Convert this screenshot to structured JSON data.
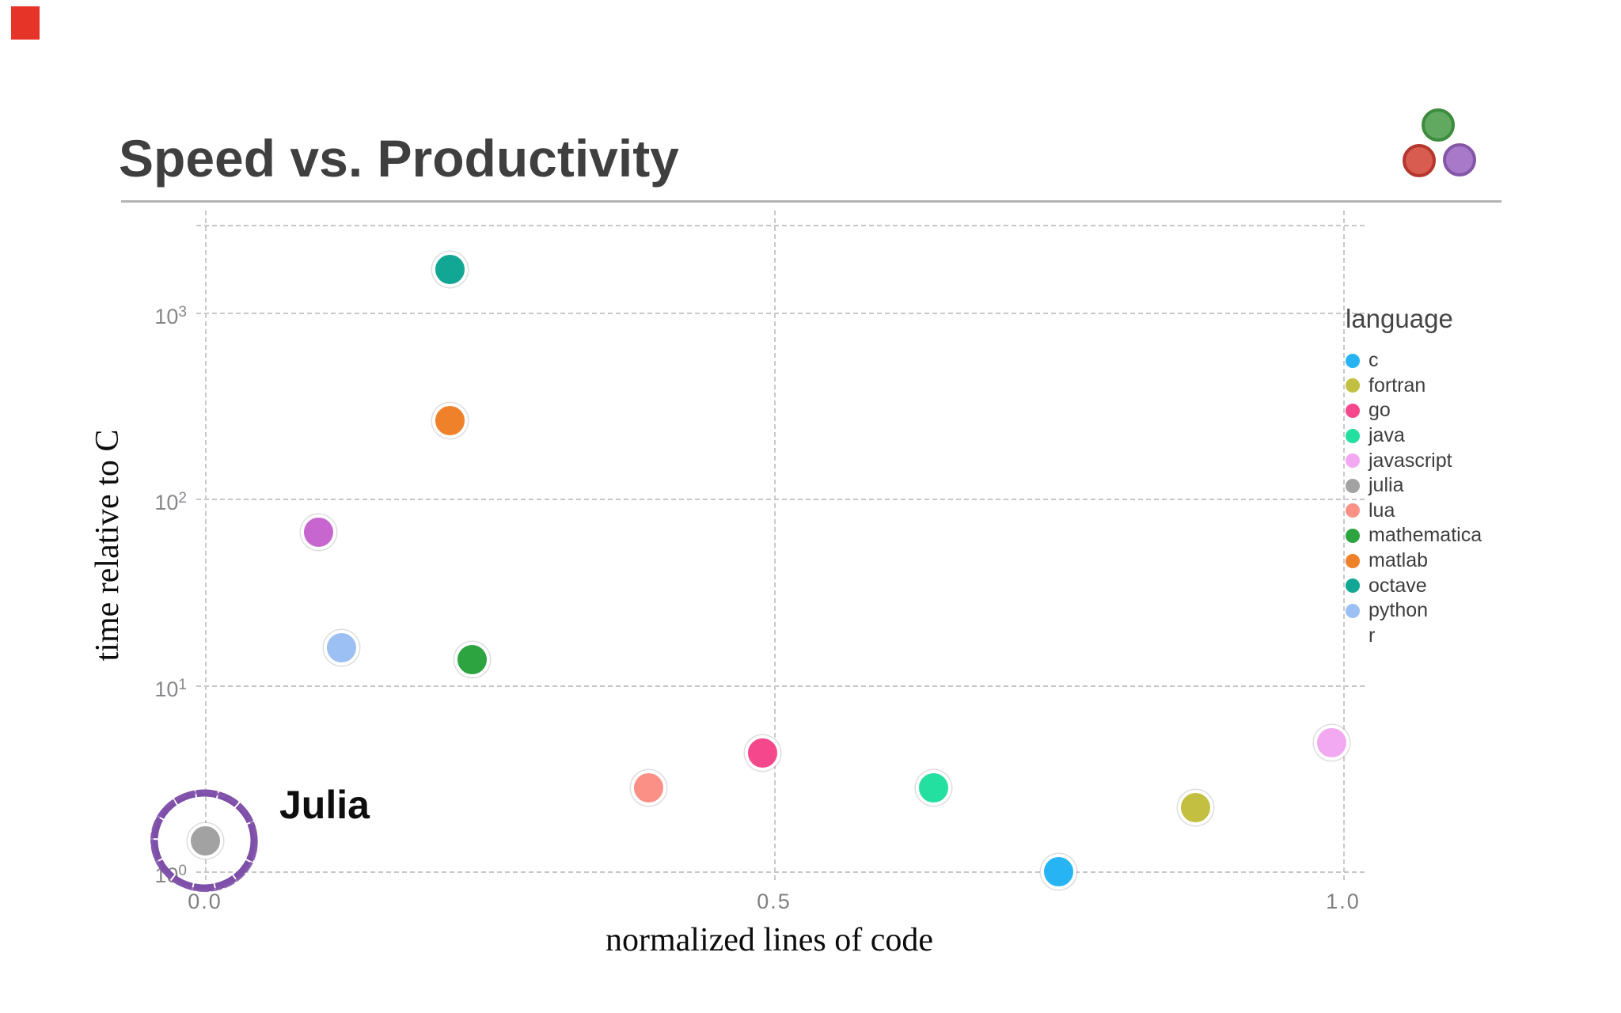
{
  "slide": {
    "title": "Speed vs. Productivity",
    "record_marker_color": "#e63429",
    "logo": {
      "description": "julia-three-dots-logo",
      "green": "#61a861",
      "green_border": "#3d8b3d",
      "red": "#d85c50",
      "red_border": "#b4362c",
      "purple": "#a979c9",
      "purple_border": "#8356a8"
    }
  },
  "annotation": {
    "label": "Julia",
    "circle_color": "#7d4fa8",
    "circled_language": "julia"
  },
  "chart_data": {
    "type": "scatter",
    "title": "",
    "legend_title": "language",
    "legend_position": "right",
    "grid": true,
    "x_axis": {
      "label": "normalized lines of code",
      "scale": "linear",
      "xlim": [
        -0.01,
        1.02
      ],
      "ticks": [
        {
          "value": 0.0,
          "label": "0.0"
        },
        {
          "value": 0.5,
          "label": "0.5"
        },
        {
          "value": 1.0,
          "label": "1.0"
        }
      ]
    },
    "y_axis": {
      "label": "time relative to C",
      "scale": "log",
      "ylim": [
        0.9,
        3400
      ],
      "ticks": [
        {
          "value": 1,
          "base": "10",
          "exponent": "0"
        },
        {
          "value": 10,
          "base": "10",
          "exponent": "1"
        },
        {
          "value": 100,
          "base": "10",
          "exponent": "2"
        },
        {
          "value": 1000,
          "base": "10",
          "exponent": "3"
        }
      ]
    },
    "points": [
      {
        "language": "c",
        "normalized_loc": 0.75,
        "time_relative_to_c": 1.0,
        "color": "#27b4f5",
        "legend_swatch_visible": true
      },
      {
        "language": "fortran",
        "normalized_loc": 0.87,
        "time_relative_to_c": 2.2,
        "color": "#c3bf40",
        "legend_swatch_visible": true
      },
      {
        "language": "go",
        "normalized_loc": 0.49,
        "time_relative_to_c": 4.3,
        "color": "#f5478c",
        "legend_swatch_visible": true
      },
      {
        "language": "java",
        "normalized_loc": 0.64,
        "time_relative_to_c": 2.8,
        "color": "#23dfa0",
        "legend_swatch_visible": true
      },
      {
        "language": "javascript",
        "normalized_loc": 0.99,
        "time_relative_to_c": 4.9,
        "color": "#f2a9f2",
        "legend_swatch_visible": true
      },
      {
        "language": "julia",
        "normalized_loc": 0.0,
        "time_relative_to_c": 1.45,
        "color": "#a2a2a2",
        "legend_swatch_visible": true
      },
      {
        "language": "lua",
        "normalized_loc": 0.39,
        "time_relative_to_c": 2.8,
        "color": "#fb9186",
        "legend_swatch_visible": true
      },
      {
        "language": "mathematica",
        "normalized_loc": 0.235,
        "time_relative_to_c": 13.7,
        "color": "#2ea440",
        "legend_swatch_visible": true
      },
      {
        "language": "matlab",
        "normalized_loc": 0.215,
        "time_relative_to_c": 263,
        "color": "#ef812b",
        "legend_swatch_visible": true
      },
      {
        "language": "octave",
        "normalized_loc": 0.215,
        "time_relative_to_c": 1700,
        "color": "#12a795",
        "legend_swatch_visible": true
      },
      {
        "language": "python",
        "normalized_loc": 0.12,
        "time_relative_to_c": 15.8,
        "color": "#9cc0f4",
        "legend_swatch_visible": true
      },
      {
        "language": "r",
        "normalized_loc": 0.1,
        "time_relative_to_c": 66,
        "color": "#c766ce",
        "legend_swatch_visible": false
      }
    ]
  }
}
